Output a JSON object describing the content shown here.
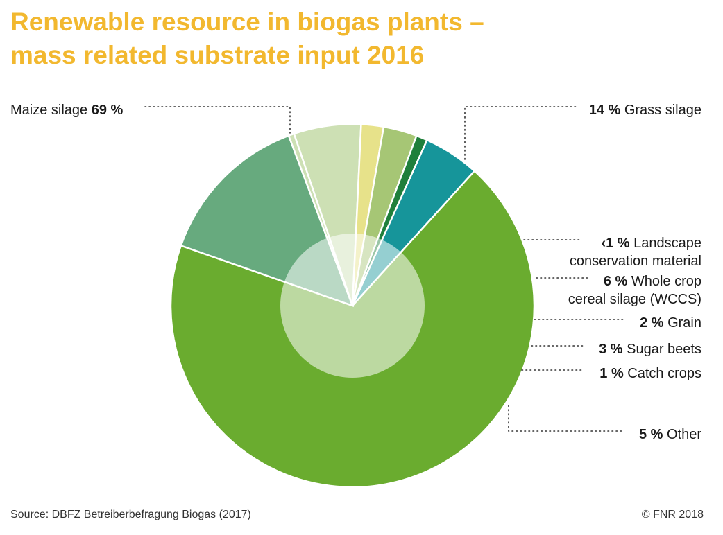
{
  "title": {
    "line1": "Renewable resource in biogas plants –",
    "line2": "mass related substrate input 2016"
  },
  "source": "Source: DBFZ Betreiberbefragung Biogas (2017)",
  "copyright": "© FNR 2018",
  "colors": {
    "title": "#f2b82f",
    "inner_circle": "#e8f1dc",
    "leader_lines": "#333333"
  },
  "chart_data": {
    "type": "pie",
    "title": "Renewable resource in biogas plants – mass related substrate input 2016",
    "unit": "%",
    "slices": [
      {
        "label": "Maize silage",
        "value": 69,
        "value_label": "69 %",
        "color": "#6aac2f"
      },
      {
        "label": "Grass silage",
        "value": 14,
        "value_label": "14 %",
        "color": "#67aa7e"
      },
      {
        "label": "Landscape conservation material",
        "value": 0.5,
        "value_label": "‹1 %",
        "color": "#cde0b4"
      },
      {
        "label": "Whole crop cereal silage (WCCS)",
        "value": 6,
        "value_label": "6 %",
        "color": "#cde0b4"
      },
      {
        "label": "Grain",
        "value": 2,
        "value_label": "2 %",
        "color": "#e7e28a"
      },
      {
        "label": "Sugar beets",
        "value": 3,
        "value_label": "3 %",
        "color": "#a6c675"
      },
      {
        "label": "Catch crops",
        "value": 1,
        "value_label": "1 %",
        "color": "#1f7f3b"
      },
      {
        "label": "Other",
        "value": 5,
        "value_label": "5 %",
        "color": "#16959a"
      }
    ]
  }
}
